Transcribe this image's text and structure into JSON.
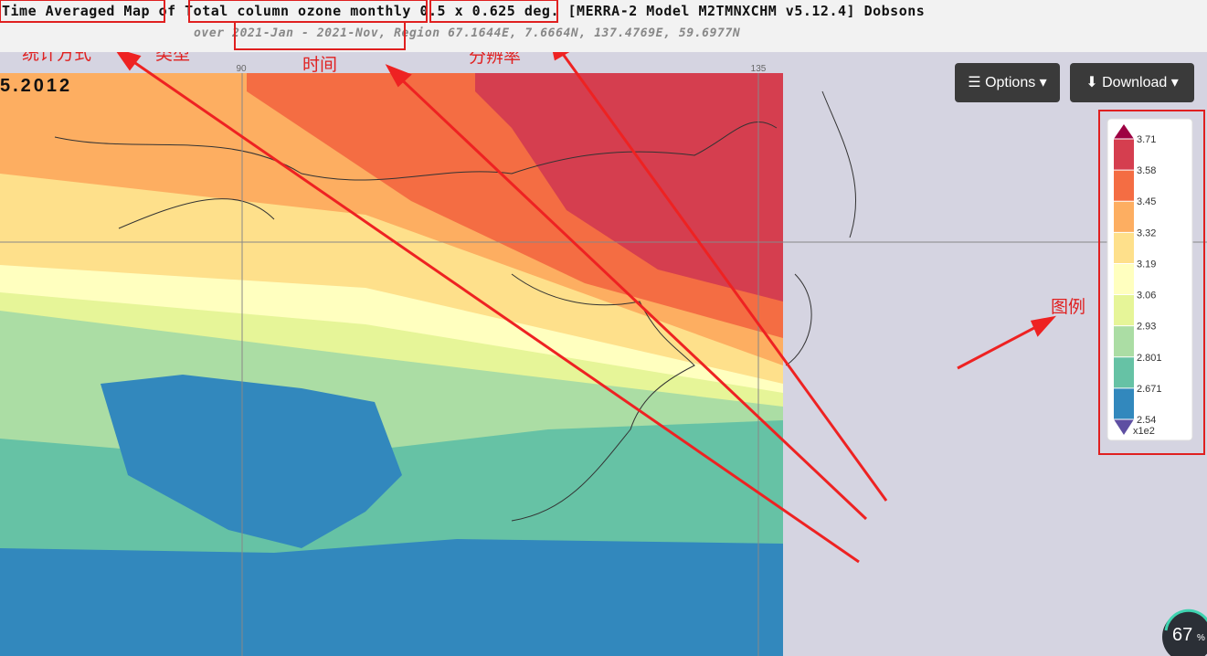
{
  "header": {
    "title": {
      "statistic": "Time Averaged Map",
      "of": "of",
      "variable": "Total column ozone monthly",
      "resolution": "0.5 x 0.625 deg",
      "rest": ". [MERRA-2 Model M2TMNXCHM v5.12.4] Dobsons"
    },
    "subtitle": {
      "over": "over",
      "period": "2021-Jan - 2021-Nov",
      "region": ", Region 67.1644E, 7.6664N, 137.4769E, 59.6977N"
    }
  },
  "annotations": {
    "statistic": "统计方式",
    "variable": "类型",
    "period": "时间",
    "resolution": "分辨率",
    "legend": "图例"
  },
  "map": {
    "corner_label": "5.2012",
    "lon_labels": [
      "90",
      "135"
    ]
  },
  "buttons": {
    "options": "Options",
    "download": "Download"
  },
  "legend": {
    "labels": [
      "3.71",
      "3.58",
      "3.45",
      "3.32",
      "3.19",
      "3.06",
      "2.93",
      "2.801",
      "2.671",
      "2.54"
    ],
    "colors": [
      "#d53e4f",
      "#f46d43",
      "#fdae61",
      "#fee08b",
      "#ffffbf",
      "#e6f598",
      "#abdda4",
      "#66c2a5",
      "#3288bd"
    ],
    "scale": "x1e2"
  },
  "badge": {
    "value": "67",
    "unit": "%"
  }
}
